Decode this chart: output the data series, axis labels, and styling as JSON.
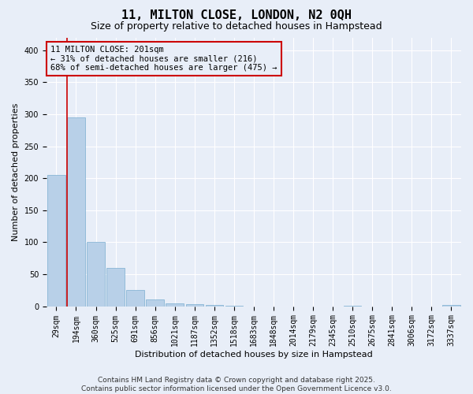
{
  "title1": "11, MILTON CLOSE, LONDON, N2 0QH",
  "title2": "Size of property relative to detached houses in Hampstead",
  "xlabel": "Distribution of detached houses by size in Hampstead",
  "ylabel": "Number of detached properties",
  "categories": [
    "29sqm",
    "194sqm",
    "360sqm",
    "525sqm",
    "691sqm",
    "856sqm",
    "1021sqm",
    "1187sqm",
    "1352sqm",
    "1518sqm",
    "1683sqm",
    "1848sqm",
    "2014sqm",
    "2179sqm",
    "2345sqm",
    "2510sqm",
    "2675sqm",
    "2841sqm",
    "3006sqm",
    "3172sqm",
    "3337sqm"
  ],
  "values": [
    205,
    295,
    100,
    60,
    25,
    10,
    5,
    3,
    2,
    1,
    0,
    0,
    0,
    0,
    0,
    1,
    0,
    0,
    0,
    0,
    2
  ],
  "bar_color": "#b8d0e8",
  "bar_edge_color": "#7aaed0",
  "marker_color": "#cc0000",
  "marker_bar_index": 1,
  "annotation_text": "11 MILTON CLOSE: 201sqm\n← 31% of detached houses are smaller (216)\n68% of semi-detached houses are larger (475) →",
  "ylim": [
    0,
    420
  ],
  "yticks": [
    0,
    50,
    100,
    150,
    200,
    250,
    300,
    350,
    400
  ],
  "footer": "Contains HM Land Registry data © Crown copyright and database right 2025.\nContains public sector information licensed under the Open Government Licence v3.0.",
  "bg_color": "#e8eef8",
  "grid_color": "#ffffff",
  "title_fontsize": 11,
  "subtitle_fontsize": 9,
  "annotation_fontsize": 7.5,
  "footer_fontsize": 6.5,
  "tick_fontsize": 7,
  "ylabel_fontsize": 8,
  "xlabel_fontsize": 8
}
